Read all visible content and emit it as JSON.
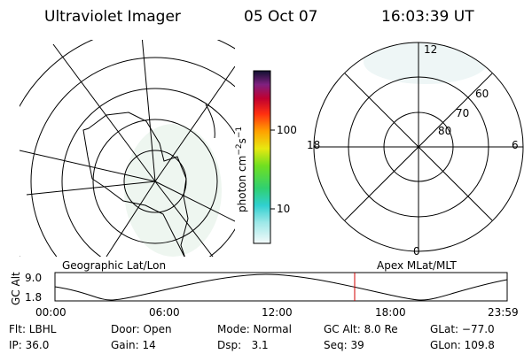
{
  "header": {
    "title": "Ultraviolet Imager",
    "date": "05 Oct 07",
    "time": "16:03:39 UT"
  },
  "colorbar": {
    "label": "photon cm",
    "exp1": "−2",
    "unit2": "s",
    "exp2": "−1",
    "ticks": [
      "100",
      "10"
    ]
  },
  "left_map": {
    "caption": "Geographic Lat/Lon"
  },
  "right_map": {
    "caption": "Apex MLat/MLT",
    "hour_labels": [
      "12",
      "18",
      "6",
      "0"
    ],
    "lat_labels": [
      "60",
      "70",
      "80"
    ]
  },
  "timeline": {
    "ylabel": "GC Alt",
    "yticks": [
      "9.0",
      "1.8"
    ],
    "xticks": [
      "00:00",
      "06:00",
      "12:00",
      "18:00",
      "23:59"
    ]
  },
  "info": [
    [
      "Flt: LBHL",
      "Door: Open",
      "Mode: Normal",
      "GC Alt: 8.0 Re",
      "GLat: −77.0"
    ],
    [
      "IP: 36.0",
      "Gain: 14",
      "Dsp:   3.1",
      "Seq: 39",
      "GLon: 109.8"
    ]
  ]
}
